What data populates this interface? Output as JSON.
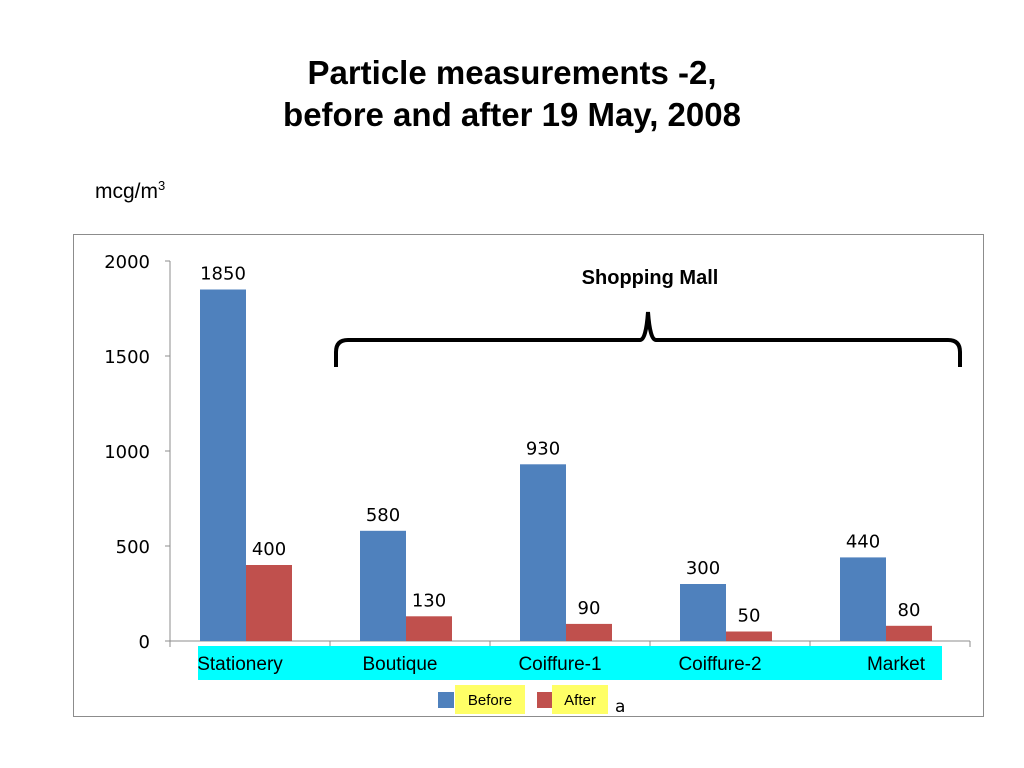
{
  "title": {
    "line1": "Particle measurements -2,",
    "line2": "before and after 19 May, 2008"
  },
  "unit": {
    "base": "mcg/m",
    "sup": "3"
  },
  "chart_data": {
    "type": "bar",
    "categories": [
      "Stationery",
      "Boutique",
      "Coiffure-1",
      "Coiffure-2",
      "Market"
    ],
    "series": [
      {
        "name": "Before",
        "values": [
          1850,
          580,
          930,
          300,
          440
        ],
        "color": "#4f81bd"
      },
      {
        "name": "After",
        "values": [
          400,
          130,
          90,
          50,
          80
        ],
        "color": "#c0504d"
      }
    ],
    "ylim": [
      0,
      2000
    ],
    "yticks": [
      0,
      500,
      1000,
      1500,
      2000
    ],
    "annotation": "Shopping Mall",
    "legend_extra": "a",
    "category_band_color": "#00ffff",
    "legend_label_bg": "#ffff66",
    "grid": false,
    "legend": "bottom"
  }
}
